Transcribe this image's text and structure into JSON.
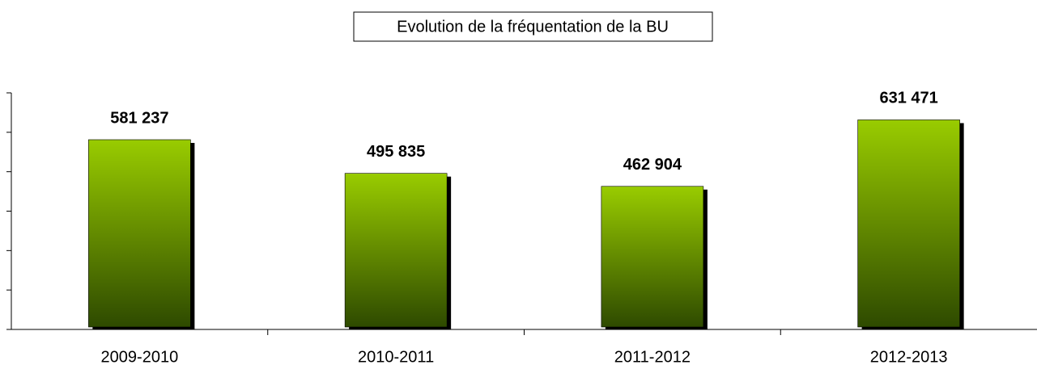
{
  "chart_data": {
    "type": "bar",
    "title": "Evolution de la fréquentation de la BU",
    "categories": [
      "2009-2010",
      "2010-2011",
      "2011-2012",
      "2012-2013"
    ],
    "values": [
      581237,
      495835,
      462904,
      631471
    ],
    "value_labels": [
      "581 237",
      "495 835",
      "462 904",
      "631 471"
    ],
    "color": "#99cc00",
    "ylim": [
      100000,
      700000
    ],
    "yticks": [
      100000,
      200000,
      300000,
      400000,
      500000,
      600000,
      700000
    ]
  }
}
